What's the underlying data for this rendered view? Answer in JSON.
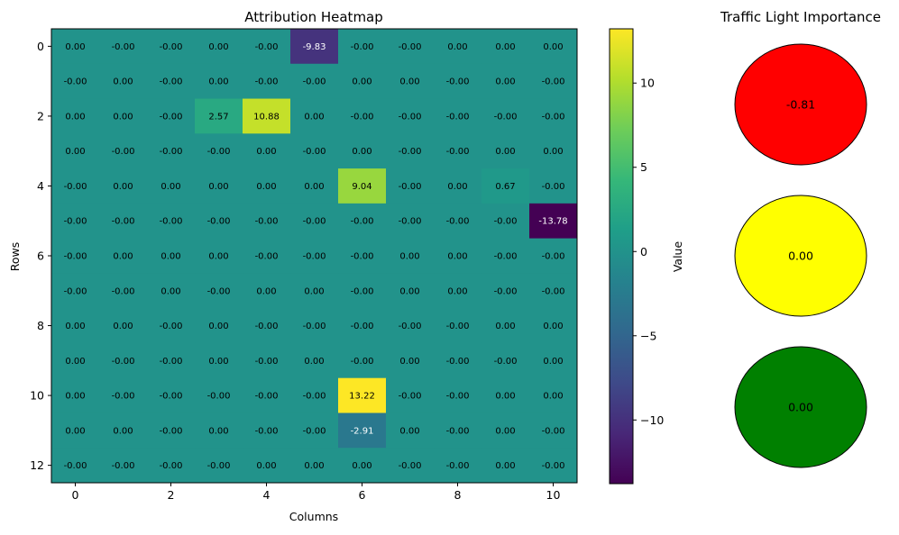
{
  "chart_data": [
    {
      "type": "heatmap",
      "title": "Attribution Heatmap",
      "xlabel": "Columns",
      "ylabel": "Rows",
      "x_ticks": [
        "0",
        "2",
        "4",
        "6",
        "8",
        "10"
      ],
      "y_ticks": [
        "0",
        "2",
        "4",
        "6",
        "8",
        "10",
        "12"
      ],
      "colormap": "viridis",
      "vmin": -13.78,
      "vmax": 13.22,
      "colorbar": {
        "label": "Value",
        "ticks": [
          10,
          5,
          0,
          -5,
          -10
        ],
        "tick_labels": [
          "10",
          "5",
          "0",
          "−5",
          "−10"
        ]
      },
      "values": [
        [
          "0.00",
          "-0.00",
          "-0.00",
          "0.00",
          "-0.00",
          "-9.83",
          "-0.00",
          "-0.00",
          "0.00",
          "0.00",
          "0.00"
        ],
        [
          "-0.00",
          "0.00",
          "-0.00",
          "0.00",
          "-0.00",
          "-0.00",
          "0.00",
          "0.00",
          "-0.00",
          "0.00",
          "-0.00"
        ],
        [
          "0.00",
          "0.00",
          "-0.00",
          "2.57",
          "10.88",
          "0.00",
          "-0.00",
          "-0.00",
          "-0.00",
          "-0.00",
          "-0.00"
        ],
        [
          "0.00",
          "-0.00",
          "-0.00",
          "-0.00",
          "0.00",
          "-0.00",
          "0.00",
          "-0.00",
          "-0.00",
          "0.00",
          "0.00"
        ],
        [
          "-0.00",
          "0.00",
          "0.00",
          "0.00",
          "0.00",
          "0.00",
          "9.04",
          "-0.00",
          "0.00",
          "0.67",
          "-0.00"
        ],
        [
          "-0.00",
          "-0.00",
          "-0.00",
          "-0.00",
          "-0.00",
          "-0.00",
          "-0.00",
          "-0.00",
          "-0.00",
          "-0.00",
          "-13.78"
        ],
        [
          "-0.00",
          "0.00",
          "0.00",
          "0.00",
          "-0.00",
          "-0.00",
          "-0.00",
          "0.00",
          "0.00",
          "-0.00",
          "-0.00"
        ],
        [
          "-0.00",
          "-0.00",
          "0.00",
          "-0.00",
          "0.00",
          "0.00",
          "-0.00",
          "0.00",
          "0.00",
          "-0.00",
          "-0.00"
        ],
        [
          "0.00",
          "0.00",
          "-0.00",
          "0.00",
          "-0.00",
          "-0.00",
          "-0.00",
          "-0.00",
          "-0.00",
          "0.00",
          "0.00"
        ],
        [
          "0.00",
          "-0.00",
          "-0.00",
          "0.00",
          "-0.00",
          "0.00",
          "-0.00",
          "0.00",
          "-0.00",
          "-0.00",
          "0.00"
        ],
        [
          "0.00",
          "-0.00",
          "-0.00",
          "-0.00",
          "-0.00",
          "-0.00",
          "13.22",
          "-0.00",
          "-0.00",
          "0.00",
          "0.00"
        ],
        [
          "0.00",
          "0.00",
          "-0.00",
          "0.00",
          "-0.00",
          "-0.00",
          "-2.91",
          "0.00",
          "-0.00",
          "0.00",
          "-0.00"
        ],
        [
          "-0.00",
          "-0.00",
          "-0.00",
          "-0.00",
          "0.00",
          "0.00",
          "0.00",
          "-0.00",
          "-0.00",
          "0.00",
          "-0.00"
        ]
      ]
    },
    {
      "type": "other",
      "title": "Traffic Light Importance",
      "lights": [
        {
          "color": "#ff0000",
          "value": "-0.81"
        },
        {
          "color": "#ffff00",
          "value": "0.00"
        },
        {
          "color": "#008000",
          "value": "0.00"
        }
      ]
    }
  ]
}
